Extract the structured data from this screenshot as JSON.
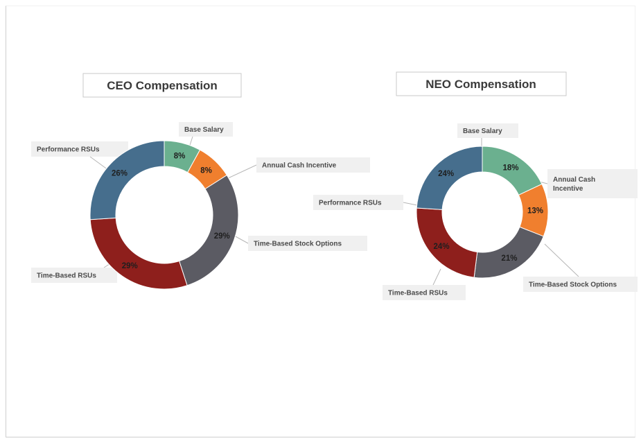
{
  "chart_data": [
    {
      "type": "pie",
      "title": "CEO Compensation",
      "categories": [
        "Base Salary",
        "Annual Cash Incentive",
        "Time-Based Stock Options",
        "Time-Based RSUs",
        "Performance RSUs"
      ],
      "values": [
        8,
        8,
        29,
        29,
        26
      ],
      "value_labels": [
        "8%",
        "8%",
        "29%",
        "29%",
        "26%"
      ],
      "colors": [
        "#6bb08f",
        "#f07f2e",
        "#5b5b63",
        "#8e1f1c",
        "#466e8d"
      ],
      "donut": true
    },
    {
      "type": "pie",
      "title": "NEO Compensation",
      "categories": [
        "Base Salary",
        "Annual Cash Incentive",
        "Time-Based Stock Options",
        "Time-Based RSUs",
        "Performance RSUs"
      ],
      "values": [
        18,
        13,
        21,
        24,
        24
      ],
      "value_labels": [
        "18%",
        "13%",
        "21%",
        "24%",
        "24%"
      ],
      "category_lines": [
        [
          "Base Salary"
        ],
        [
          "Annual Cash",
          "Incentive"
        ],
        [
          "Time-Based Stock Options"
        ],
        [
          "Time-Based RSUs"
        ],
        [
          "Performance RSUs"
        ]
      ],
      "colors": [
        "#6bb08f",
        "#f07f2e",
        "#5b5b63",
        "#8e1f1c",
        "#466e8d"
      ],
      "donut": true
    }
  ]
}
